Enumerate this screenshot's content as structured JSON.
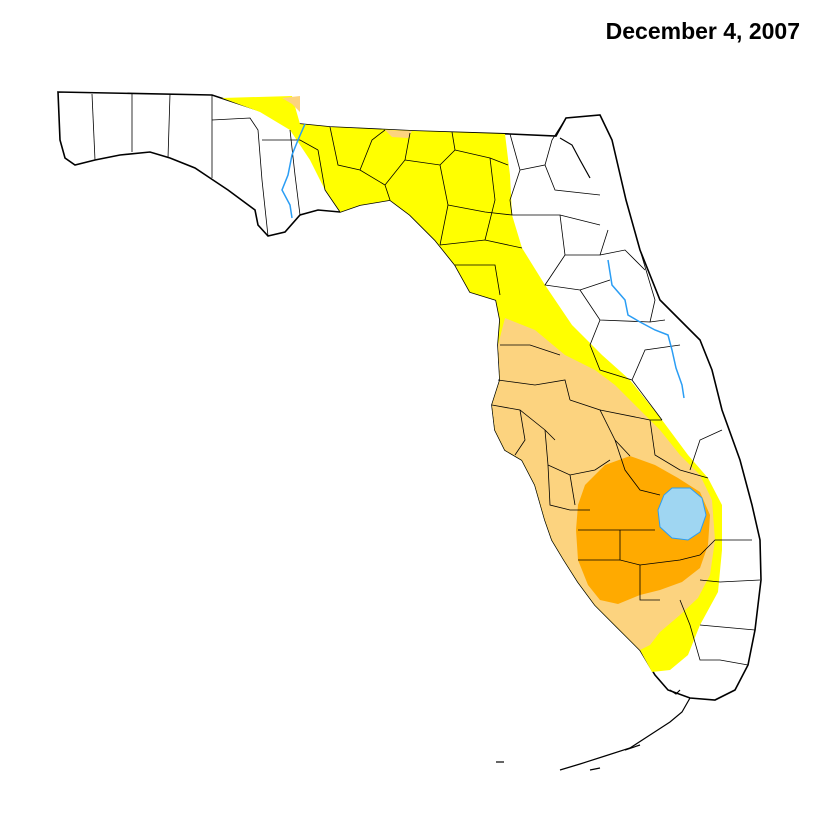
{
  "map": {
    "date_label": "December 4, 2007"
  },
  "colors": {
    "background": "#ffffff",
    "land": "#ffffff",
    "outline": "#000000",
    "county_lines": "#000000",
    "water": "#9fd6f2",
    "river": "#2a9df4",
    "drought_d0_abnormally_dry": "#ffff00",
    "drought_d1_moderate": "#fcd37f",
    "drought_d2_severe": "#ffaa00"
  }
}
